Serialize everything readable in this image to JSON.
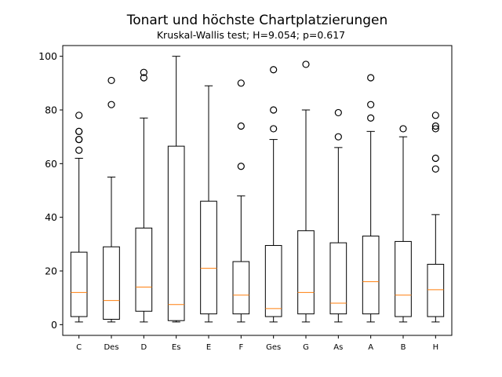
{
  "chart_data": {
    "type": "boxplot",
    "title": "Tonart und höchste Chartplatzierungen",
    "subtitle": "Kruskal-Wallis test; H=9.054; p=0.617",
    "xlabel": "",
    "ylabel": "",
    "ylim": [
      -4,
      104
    ],
    "yticks": [
      0,
      20,
      40,
      60,
      80,
      100
    ],
    "grid": false,
    "colors": {
      "box": "#000000",
      "median": "#ff7f0e",
      "flier": "#000000"
    },
    "categories": [
      "C",
      "Des",
      "D",
      "Es",
      "E",
      "F",
      "Ges",
      "G",
      "As",
      "A",
      "B",
      "H"
    ],
    "boxes": [
      {
        "category": "C",
        "whisker_low": 1,
        "q1": 3,
        "median": 12,
        "q3": 27,
        "whisker_high": 62,
        "fliers": [
          65,
          69,
          69,
          72,
          72,
          78
        ]
      },
      {
        "category": "Des",
        "whisker_low": 1,
        "q1": 2,
        "median": 9,
        "q3": 29,
        "whisker_high": 55,
        "fliers": [
          82,
          91
        ]
      },
      {
        "category": "D",
        "whisker_low": 1,
        "q1": 5,
        "median": 14,
        "q3": 36,
        "whisker_high": 77,
        "fliers": [
          92,
          94
        ]
      },
      {
        "category": "Es",
        "whisker_low": 1,
        "q1": 1.5,
        "median": 7.5,
        "q3": 66.5,
        "whisker_high": 100,
        "fliers": []
      },
      {
        "category": "E",
        "whisker_low": 1,
        "q1": 4,
        "median": 21,
        "q3": 46,
        "whisker_high": 89,
        "fliers": []
      },
      {
        "category": "F",
        "whisker_low": 1,
        "q1": 4,
        "median": 11,
        "q3": 23.5,
        "whisker_high": 48,
        "fliers": [
          59,
          74,
          90
        ]
      },
      {
        "category": "Ges",
        "whisker_low": 1,
        "q1": 3,
        "median": 6,
        "q3": 29.5,
        "whisker_high": 69,
        "fliers": [
          73,
          80,
          95
        ]
      },
      {
        "category": "G",
        "whisker_low": 1,
        "q1": 4,
        "median": 12,
        "q3": 35,
        "whisker_high": 80,
        "fliers": [
          97
        ]
      },
      {
        "category": "As",
        "whisker_low": 1,
        "q1": 4,
        "median": 8,
        "q3": 30.5,
        "whisker_high": 66,
        "fliers": [
          70,
          79
        ]
      },
      {
        "category": "A",
        "whisker_low": 1,
        "q1": 4,
        "median": 16,
        "q3": 33,
        "whisker_high": 72,
        "fliers": [
          77,
          82,
          92
        ]
      },
      {
        "category": "B",
        "whisker_low": 1,
        "q1": 3,
        "median": 11,
        "q3": 31,
        "whisker_high": 70,
        "fliers": [
          73
        ]
      },
      {
        "category": "H",
        "whisker_low": 1,
        "q1": 3,
        "median": 13,
        "q3": 22.5,
        "whisker_high": 41,
        "fliers": [
          58,
          62,
          73,
          74,
          78
        ]
      }
    ]
  }
}
